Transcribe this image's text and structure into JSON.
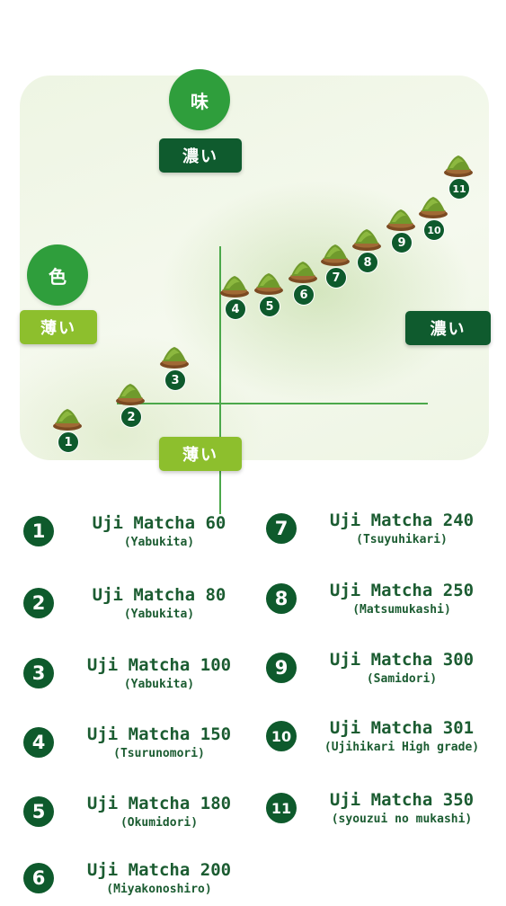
{
  "axes": {
    "vertical_title": "味",
    "horizontal_title": "色",
    "top_label": "濃い",
    "bottom_label": "薄い",
    "left_label": "薄い",
    "right_label": "濃い"
  },
  "colors": {
    "dark_green": "#0f5b2e",
    "accent_green": "#2f9e3c",
    "light_green": "#8dbf2d",
    "axis_green": "#4ba84a"
  },
  "marks": [
    "1",
    "2",
    "3",
    "4",
    "5",
    "6",
    "7",
    "8",
    "9",
    "10",
    "11"
  ],
  "mark_icon": "matcha-bowl-icon",
  "legend": [
    {
      "num": "1",
      "name": "Uji Matcha 60",
      "variety": "(Yabukita)"
    },
    {
      "num": "2",
      "name": "Uji Matcha 80",
      "variety": "(Yabukita)"
    },
    {
      "num": "3",
      "name": "Uji Matcha 100",
      "variety": "(Yabukita)"
    },
    {
      "num": "4",
      "name": "Uji Matcha 150",
      "variety": "(Tsurunomori)"
    },
    {
      "num": "5",
      "name": "Uji Matcha 180",
      "variety": "(Okumidori)"
    },
    {
      "num": "6",
      "name": "Uji Matcha 200",
      "variety": "(Miyakonoshiro)"
    },
    {
      "num": "7",
      "name": "Uji Matcha 240",
      "variety": "(Tsuyuhikari)"
    },
    {
      "num": "8",
      "name": "Uji Matcha 250",
      "variety": "(Matsumukashi)"
    },
    {
      "num": "9",
      "name": "Uji Matcha 300",
      "variety": "(Samidori)"
    },
    {
      "num": "10",
      "name": "Uji Matcha 301",
      "variety": "(Ujihikari High grade)"
    },
    {
      "num": "11",
      "name": "Uji Matcha 350",
      "variety": "(syouzui no mukashi)"
    }
  ]
}
